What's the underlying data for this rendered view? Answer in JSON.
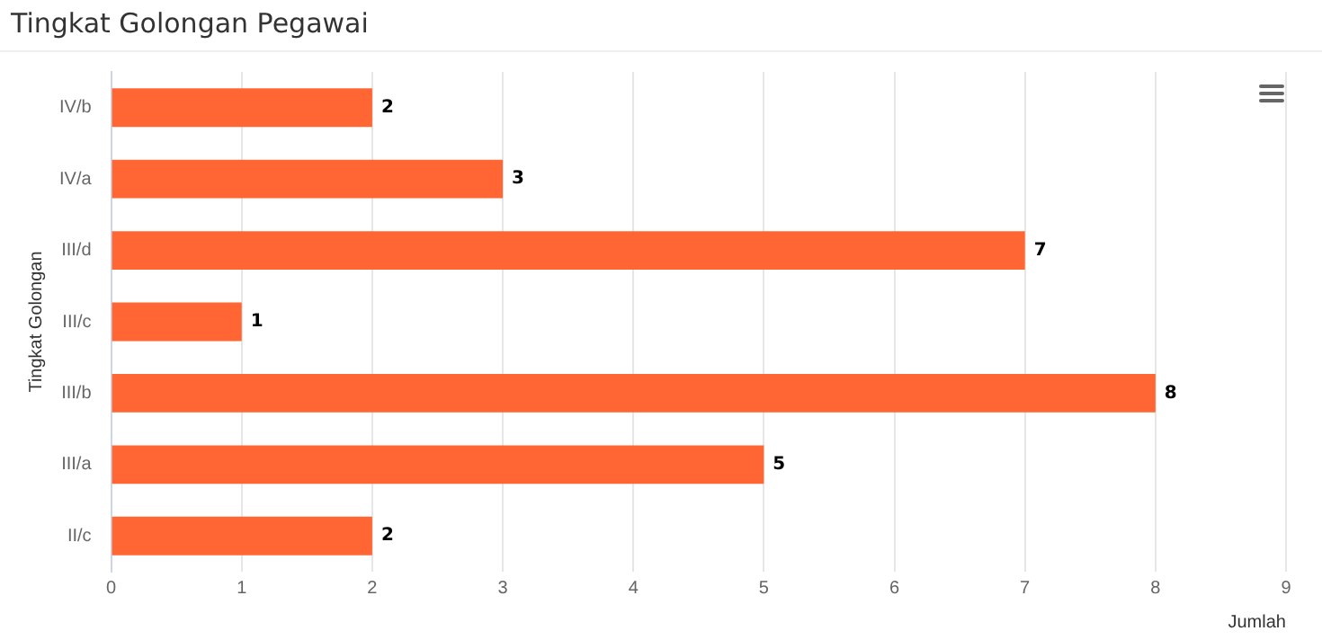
{
  "chart_data": {
    "type": "bar",
    "orientation": "horizontal",
    "title": "Tingkat Golongan Pegawai",
    "xlabel": "Jumlah",
    "ylabel": "Tingkat Golongan",
    "categories": [
      "IV/b",
      "IV/a",
      "III/d",
      "III/c",
      "III/b",
      "III/a",
      "II/c"
    ],
    "values": [
      2,
      3,
      7,
      1,
      8,
      5,
      2
    ],
    "color": "#ff6633",
    "xlim": [
      0,
      9
    ],
    "xticks": [
      0,
      1,
      2,
      3,
      4,
      5,
      6,
      7,
      8,
      9
    ],
    "grid": "x",
    "legend": false,
    "data_labels": true
  }
}
